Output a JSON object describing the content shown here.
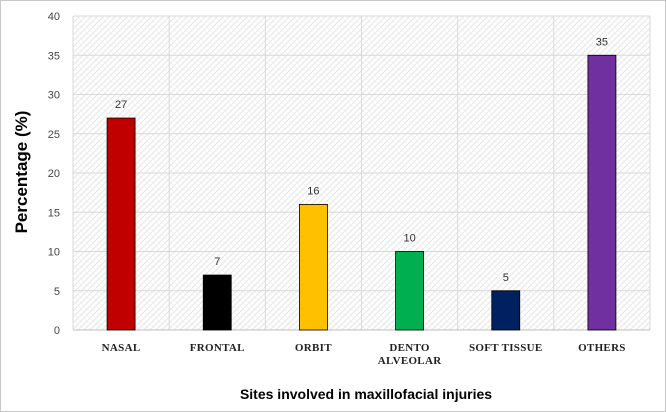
{
  "chart_data": {
    "type": "bar",
    "title": "",
    "xlabel": "Sites involved in maxillofacial injuries",
    "ylabel": "Percentage (%)",
    "ylim": [
      0,
      40
    ],
    "yticks": [
      0,
      5,
      10,
      15,
      20,
      25,
      30,
      35,
      40
    ],
    "grid": true,
    "categories": [
      [
        "NASAL"
      ],
      [
        "FRONTAL"
      ],
      [
        "ORBIT"
      ],
      [
        "DENTO",
        "ALVEOLAR"
      ],
      [
        "SOFT TISSUE"
      ],
      [
        "OTHERS"
      ]
    ],
    "values": [
      27,
      7,
      16,
      10,
      5,
      35
    ],
    "colors": [
      "#c00000",
      "#000000",
      "#ffc000",
      "#00b050",
      "#002060",
      "#7030a0"
    ]
  }
}
